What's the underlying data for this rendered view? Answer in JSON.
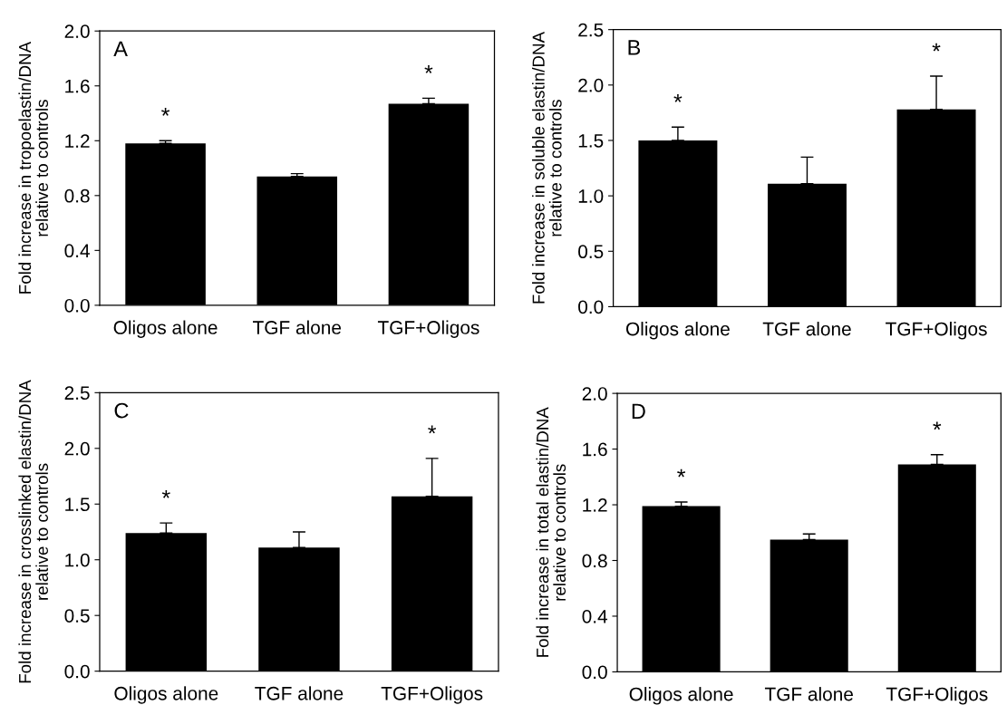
{
  "chart_data": [
    {
      "type": "bar",
      "title": "A",
      "ylabel": "Fold increase in tropoelastin/DNA\nrelative to controls",
      "categories": [
        "Oligos alone",
        "TGF alone",
        "TGF+Oligos"
      ],
      "values": [
        1.18,
        0.94,
        1.47
      ],
      "errors": [
        [
          1.18,
          1.2
        ],
        [
          0.94,
          0.96
        ],
        [
          1.47,
          1.51
        ]
      ],
      "color": "#000000",
      "ylim": [
        0,
        2.0
      ],
      "yticks": [
        {
          "value": 0,
          "label": "0.0"
        },
        0.4,
        0.8,
        1.2,
        1.6,
        {
          "value": 2,
          "label": "2.0"
        }
      ],
      "annotations": [
        {
          "text": "*",
          "x": "Oligos alone",
          "y": 1.18
        },
        {
          "text": "*",
          "x": "TGF+Oligos",
          "y": 1.47
        }
      ]
    },
    {
      "type": "bar",
      "title": "B",
      "ylabel": "Fold increase in soluble elastin/DNA\nrelative to controls",
      "categories": [
        "Oligos alone",
        "TGF alone",
        "TGF+Oligos"
      ],
      "values": [
        1.5,
        1.11,
        1.78
      ],
      "errors": [
        [
          1.5,
          1.62
        ],
        [
          1.11,
          1.35
        ],
        [
          1.78,
          2.08
        ]
      ],
      "color": "#000000",
      "ylim": [
        0,
        2.5
      ],
      "yticks": [
        {
          "value": 0,
          "label": "0.0"
        },
        0.5,
        {
          "value": 1,
          "label": "1.0"
        },
        1.5,
        {
          "value": 2,
          "label": "2.0"
        },
        2.5
      ],
      "annotations": [
        {
          "text": "*",
          "x": "Oligos alone",
          "y": 1.5
        },
        {
          "text": "*",
          "x": "TGF+Oligos",
          "y": 1.78
        }
      ]
    },
    {
      "type": "bar",
      "title": "C",
      "ylabel": "Fold increase in crosslinked elastin/DNA\nrelative to controls",
      "categories": [
        "Oligos alone",
        "TGF alone",
        "TGF+Oligos"
      ],
      "values": [
        1.24,
        1.11,
        1.57
      ],
      "errors": [
        [
          1.24,
          1.33
        ],
        [
          1.11,
          1.25
        ],
        [
          1.57,
          1.91
        ]
      ],
      "color": "#000000",
      "ylim": [
        0,
        2.5
      ],
      "yticks": [
        {
          "value": 0,
          "label": "0.0"
        },
        0.5,
        {
          "value": 1,
          "label": "1.0"
        },
        1.5,
        {
          "value": 2,
          "label": "2.0"
        },
        2.5
      ],
      "annotations": [
        {
          "text": "*",
          "x": "Oligos alone",
          "y": 1.24
        },
        {
          "text": "*",
          "x": "TGF+Oligos",
          "y": 1.57
        }
      ]
    },
    {
      "type": "bar",
      "title": "D",
      "ylabel": "Fold increase in total elastin/DNA\nrelative to controls",
      "categories": [
        "Oligos alone",
        "TGF alone",
        "TGF+Oligos"
      ],
      "values": [
        1.19,
        0.95,
        1.49
      ],
      "errors": [
        [
          1.19,
          1.22
        ],
        [
          0.95,
          0.99
        ],
        [
          1.49,
          1.56
        ]
      ],
      "color": "#000000",
      "ylim": [
        0,
        2.0
      ],
      "yticks": [
        {
          "value": 0,
          "label": "0.0"
        },
        0.4,
        0.8,
        1.2,
        1.6,
        {
          "value": 2,
          "label": "2.0"
        }
      ],
      "annotations": [
        {
          "text": "*",
          "x": "Oligos alone",
          "y": 1.19
        },
        {
          "text": "*",
          "x": "TGF+Oligos",
          "y": 1.49
        }
      ]
    }
  ]
}
